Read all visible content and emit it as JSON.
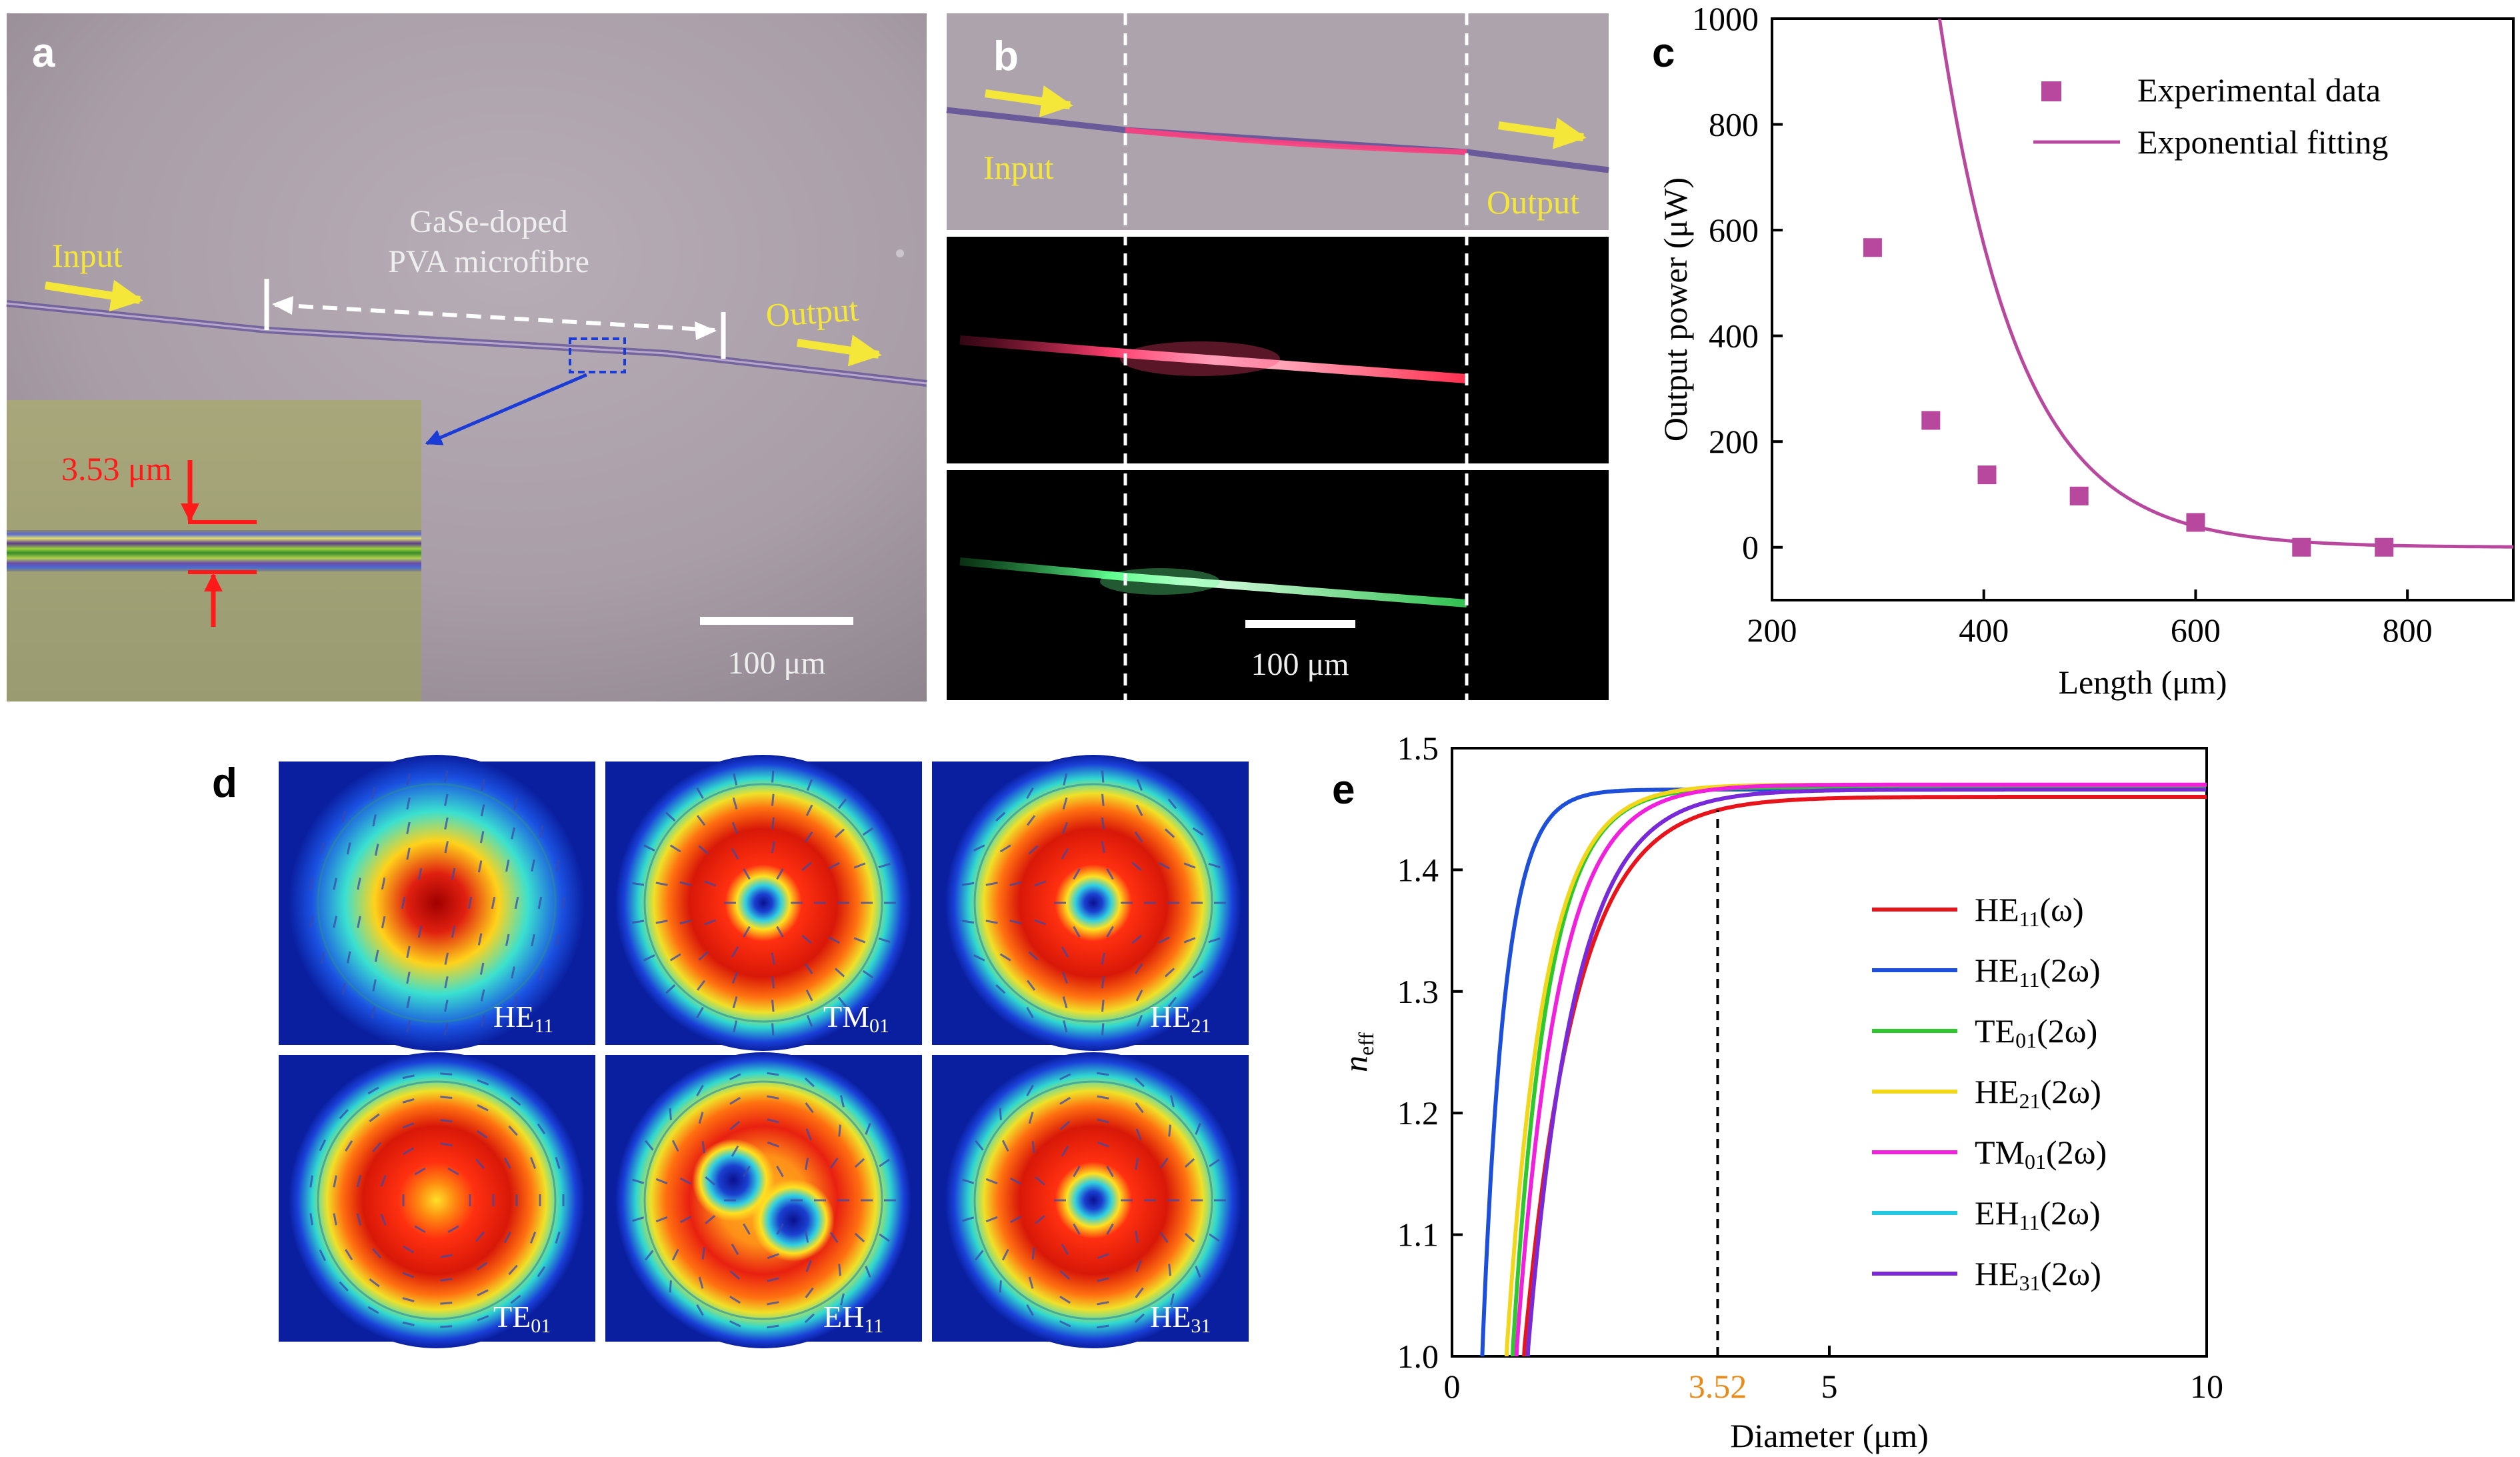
{
  "panels": {
    "a": {
      "letter": "a",
      "input": "Input",
      "output": "Output",
      "fibre_label_line1": "GaSe-doped",
      "fibre_label_line2": "PVA microfibre",
      "diameter_label": "3.53 μm",
      "scalebar": "100 μm"
    },
    "b": {
      "letter": "b",
      "input": "Input",
      "output": "Output",
      "scalebar": "100 μm"
    },
    "c": {
      "letter": "c"
    },
    "d": {
      "letter": "d",
      "modes": [
        {
          "base": "HE",
          "sub": "11"
        },
        {
          "base": "TM",
          "sub": "01"
        },
        {
          "base": "HE",
          "sub": "21"
        },
        {
          "base": "TE",
          "sub": "01"
        },
        {
          "base": "EH",
          "sub": "11"
        },
        {
          "base": "HE",
          "sub": "31"
        }
      ]
    },
    "e": {
      "letter": "e"
    }
  },
  "colors": {
    "experimental": "#b8479e",
    "fit": "#b8479e",
    "mode_bg": "#0a1fa0",
    "arrow_yellow": "#f5e63a",
    "marker_red": "#ff1a1a",
    "inset_box": "#1a3bd6"
  },
  "chart_data": [
    {
      "id": "c",
      "type": "scatter",
      "xlabel": "Length (μm)",
      "ylabel": "Output power (μW)",
      "xlim": [
        200,
        900
      ],
      "ylim": [
        -100,
        1000
      ],
      "xticks": [
        200,
        400,
        600,
        800
      ],
      "yticks": [
        0,
        200,
        400,
        600,
        800,
        1000
      ],
      "legend_position": "top-right",
      "series": [
        {
          "name": "Experimental data",
          "kind": "points",
          "x": [
            295,
            350,
            403,
            490,
            600,
            700,
            778
          ],
          "y": [
            567,
            240,
            137,
            97,
            47,
            0,
            0
          ]
        },
        {
          "name": "Exponential fitting",
          "kind": "line",
          "model": "y = 8240 * exp(-(x - 200) / 75)"
        }
      ]
    },
    {
      "id": "e",
      "type": "line",
      "xlabel": "Diameter (μm)",
      "ylabel_base": "n",
      "ylabel_sub": "eff",
      "xlim": [
        0,
        10
      ],
      "ylim": [
        1.0,
        1.5
      ],
      "xticks": [
        0,
        5,
        10
      ],
      "yticks": [
        "1.0",
        "1.1",
        "1.2",
        "1.3",
        "1.4",
        "1.5"
      ],
      "marker_x": 3.52,
      "marker_label": "3.52",
      "marker_label_color": "#e88a1a",
      "legend_position": "center-right",
      "series": [
        {
          "name_base": "HE",
          "name_sub": "11",
          "name_tail": "(ω)",
          "color": "#e8141c",
          "cutoff": 0.95,
          "plateau": 1.46,
          "tau": 1.1
        },
        {
          "name_base": "HE",
          "name_sub": "11",
          "name_tail": "(2ω)",
          "color": "#1d4fd8",
          "cutoff": 0.4,
          "plateau": 1.466,
          "tau": 0.48
        },
        {
          "name_base": "TE",
          "name_sub": "01",
          "name_tail": "(2ω)",
          "color": "#2ec82e",
          "cutoff": 0.8,
          "plateau": 1.468,
          "tau": 0.75
        },
        {
          "name_base": "HE",
          "name_sub": "21",
          "name_tail": "(2ω)",
          "color": "#f2d61a",
          "cutoff": 0.72,
          "plateau": 1.47,
          "tau": 0.8
        },
        {
          "name_base": "TM",
          "name_sub": "01",
          "name_tail": "(2ω)",
          "color": "#f020dc",
          "cutoff": 0.85,
          "plateau": 1.47,
          "tau": 0.88
        },
        {
          "name_base": "EH",
          "name_sub": "11",
          "name_tail": "(2ω)",
          "color": "#22c8e0",
          "cutoff": 1.0,
          "plateau": 1.466,
          "tau": 1.0
        },
        {
          "name_base": "HE",
          "name_sub": "31",
          "name_tail": "(2ω)",
          "color": "#7a28d8",
          "cutoff": 1.0,
          "plateau": 1.466,
          "tau": 1.0
        }
      ]
    }
  ]
}
